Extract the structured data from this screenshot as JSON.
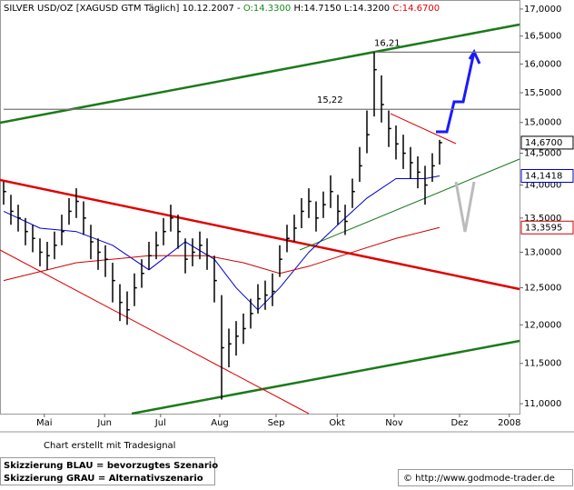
{
  "chart_data": {
    "type": "ohlc",
    "title": "SILVER USD/OZ [XAGUSD GTM  Täglich] 10.12.2007 -",
    "quote_open": "O:14.3300",
    "quote_high_low": "H:14.7150 L:14.3200",
    "quote_close": "C:14.6700",
    "categories": [
      null,
      null,
      null,
      null,
      null,
      null,
      null,
      null,
      null,
      null,
      null,
      null,
      null,
      null,
      null,
      null,
      null,
      null,
      null,
      null,
      null,
      null,
      null,
      null,
      null,
      null,
      null,
      null,
      null,
      null,
      null,
      null,
      null,
      null,
      null,
      null,
      null,
      null,
      null,
      null,
      null,
      null,
      null,
      null,
      null,
      null,
      null,
      null,
      null,
      null,
      null,
      null,
      null,
      null,
      null,
      null,
      null,
      null,
      null,
      null,
      null
    ],
    "high": [
      14.05,
      13.85,
      13.7,
      13.5,
      13.4,
      13.2,
      13.15,
      13.3,
      13.55,
      13.8,
      13.95,
      13.75,
      13.4,
      13.2,
      13.1,
      12.85,
      12.55,
      12.45,
      12.7,
      12.9,
      13.15,
      13.3,
      13.5,
      13.7,
      13.55,
      13.2,
      13.2,
      13.3,
      13.2,
      12.95,
      12.4,
      11.95,
      12.05,
      12.15,
      12.35,
      12.55,
      12.6,
      12.7,
      13.1,
      13.4,
      13.55,
      13.8,
      13.95,
      13.75,
      13.9,
      14.15,
      13.85,
      13.7,
      14.1,
      14.6,
      15.2,
      16.21,
      15.8,
      15.2,
      14.95,
      14.8,
      14.6,
      14.45,
      14.3,
      14.5,
      14.715
    ],
    "low": [
      13.7,
      13.4,
      13.3,
      13.1,
      13.0,
      12.8,
      12.75,
      12.9,
      13.1,
      13.4,
      13.5,
      13.25,
      12.9,
      12.75,
      12.65,
      12.3,
      12.05,
      12.0,
      12.25,
      12.5,
      12.75,
      12.9,
      13.1,
      13.3,
      13.05,
      12.7,
      12.8,
      12.9,
      12.75,
      12.3,
      11.05,
      11.45,
      11.6,
      11.75,
      11.95,
      12.15,
      12.2,
      12.25,
      12.65,
      13.0,
      13.15,
      13.35,
      13.5,
      13.3,
      13.5,
      13.65,
      13.4,
      13.25,
      13.65,
      14.05,
      14.5,
      15.1,
      15.0,
      14.6,
      14.4,
      14.25,
      14.1,
      13.95,
      13.7,
      14.05,
      14.32
    ],
    "close": [
      13.9,
      13.6,
      13.5,
      13.3,
      13.2,
      13.0,
      12.95,
      13.1,
      13.3,
      13.6,
      13.75,
      13.5,
      13.15,
      13.0,
      12.9,
      12.6,
      12.3,
      12.2,
      12.5,
      12.7,
      12.95,
      13.1,
      13.3,
      13.5,
      13.3,
      12.9,
      13.0,
      13.1,
      12.95,
      12.6,
      11.7,
      11.75,
      11.85,
      11.95,
      12.15,
      12.35,
      12.4,
      12.45,
      12.9,
      13.2,
      13.35,
      13.6,
      13.75,
      13.5,
      13.7,
      13.9,
      13.6,
      13.45,
      13.9,
      14.3,
      14.8,
      15.9,
      15.3,
      14.9,
      14.65,
      14.5,
      14.35,
      14.2,
      14.0,
      14.3,
      14.67
    ],
    "color": "#000000",
    "price_label": {
      "value": 14.67,
      "label": "14,6700"
    },
    "overlays": [
      {
        "color": "#0000cc",
        "x": [
          0,
          5,
          10,
          15,
          20,
          25,
          29,
          32,
          35,
          38,
          42,
          46,
          50,
          54,
          58,
          60
        ],
        "values": [
          13.6,
          13.35,
          13.3,
          13.1,
          12.75,
          13.15,
          12.9,
          12.5,
          12.2,
          12.5,
          13.0,
          13.4,
          13.8,
          14.1,
          14.1,
          14.1418
        ],
        "last_label": {
          "value": 14.1418,
          "label": "14,1418"
        }
      },
      {
        "color": "#cc0000",
        "x": [
          0,
          10,
          20,
          28,
          33,
          38,
          42,
          48,
          54,
          60
        ],
        "values": [
          12.6,
          12.85,
          12.95,
          12.95,
          12.85,
          12.7,
          12.8,
          13.0,
          13.2,
          13.3595
        ],
        "last_label": {
          "value": 13.3595,
          "label": "13,3595"
        }
      }
    ],
    "levels": [
      {
        "value": 16.21,
        "label": "16,21",
        "from": 51
      },
      {
        "value": 15.22,
        "label": "15,22",
        "from": 0
      }
    ],
    "ylim": [
      10.88,
      17.17
    ],
    "log": true,
    "yticks": [
      {
        "value": 11,
        "label": "11,0000"
      },
      {
        "value": 11.5,
        "label": "11,5000"
      },
      {
        "value": 12,
        "label": "12,0000"
      },
      {
        "value": 12.5,
        "label": "12,5000"
      },
      {
        "value": 13,
        "label": "13,0000"
      },
      {
        "value": 13.5,
        "label": "13,5000"
      },
      {
        "value": 14,
        "label": "14,0000"
      },
      {
        "value": 14.5,
        "label": "14,5000"
      },
      {
        "value": 15,
        "label": "15,0000"
      },
      {
        "value": 15.5,
        "label": "15,5000"
      },
      {
        "value": 16,
        "label": "16,0000"
      },
      {
        "value": 16.5,
        "label": "16,5000"
      },
      {
        "value": 17,
        "label": "17,0000"
      }
    ],
    "xlim": [
      -0.5,
      71
    ],
    "xticks": [
      {
        "value": 5.6,
        "label": "Mai"
      },
      {
        "value": 13.9,
        "label": "Jun"
      },
      {
        "value": 21.6,
        "label": "Jul"
      },
      {
        "value": 29.75,
        "label": "Aug"
      },
      {
        "value": 37.5,
        "label": "Sep"
      },
      {
        "value": 45.9,
        "label": "Okt"
      },
      {
        "value": 53.75,
        "label": "Nov"
      },
      {
        "value": 62.75,
        "label": "Dez"
      },
      {
        "value": 69.6,
        "label": "2008"
      }
    ]
  },
  "footer": {
    "credit": "Chart erstellt mit Tradesignal",
    "legend_blue": "Skizzierung BLAU = bevorzugtes Szenario",
    "legend_gray": "Skizzierung GRAU = Alternativszenario",
    "url": "© http://www.godmode-trader.de"
  }
}
